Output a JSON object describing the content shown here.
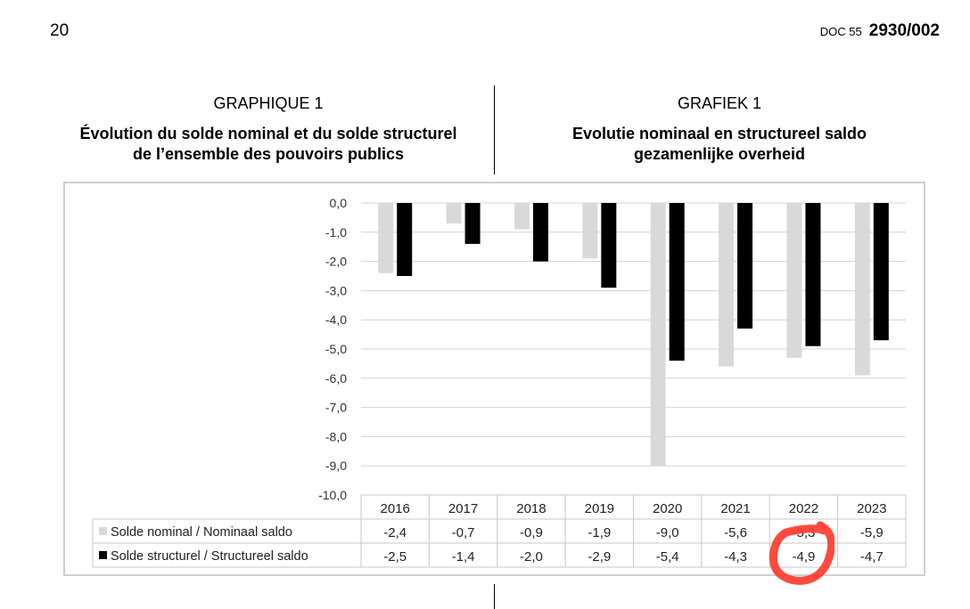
{
  "page": {
    "number": "20",
    "doc_label": "DOC 55",
    "doc_code": "2930/002"
  },
  "left_header": {
    "caption": "GRAPHIQUE 1",
    "title_line1": "Évolution du solde nominal et du solde structurel",
    "title_line2": "de l’ensemble des pouvoirs publics"
  },
  "right_header": {
    "caption": "GRAFIEK 1",
    "title_line1": "Evolutie nominaal en structureel saldo",
    "title_line2": "gezamenlijke overheid"
  },
  "chart_data": {
    "type": "bar",
    "categories": [
      "2016",
      "2017",
      "2018",
      "2019",
      "2020",
      "2021",
      "2022",
      "2023"
    ],
    "series": [
      {
        "name": "Solde nominal / Nominaal saldo",
        "values": [
          -2.4,
          -0.7,
          -0.9,
          -1.9,
          -9.0,
          -5.6,
          -5.3,
          -5.9
        ],
        "labels": [
          "-2,4",
          "-0,7",
          "-0,9",
          "-1,9",
          "-9,0",
          "-5,6",
          "-5,3",
          "-5,9"
        ],
        "color": "#d9d9d9"
      },
      {
        "name": "Solde structurel / Structureel saldo",
        "values": [
          -2.5,
          -1.4,
          -2.0,
          -2.9,
          -5.4,
          -4.3,
          -4.9,
          -4.7
        ],
        "labels": [
          "-2,5",
          "-1,4",
          "-2,0",
          "-2,9",
          "-5,4",
          "-4,3",
          "-4,9",
          "-4,7"
        ],
        "color": "#000000"
      }
    ],
    "ylim": [
      -10,
      0
    ],
    "yticks": [
      "0,0",
      "-1,0",
      "-2,0",
      "-3,0",
      "-4,0",
      "-5,0",
      "-6,0",
      "-7,0",
      "-8,0",
      "-9,0",
      "-10,0"
    ],
    "grid": true,
    "legend": "data-table"
  },
  "annotation": {
    "type": "red-handdrawn-circle",
    "color": "#ff3b30"
  }
}
